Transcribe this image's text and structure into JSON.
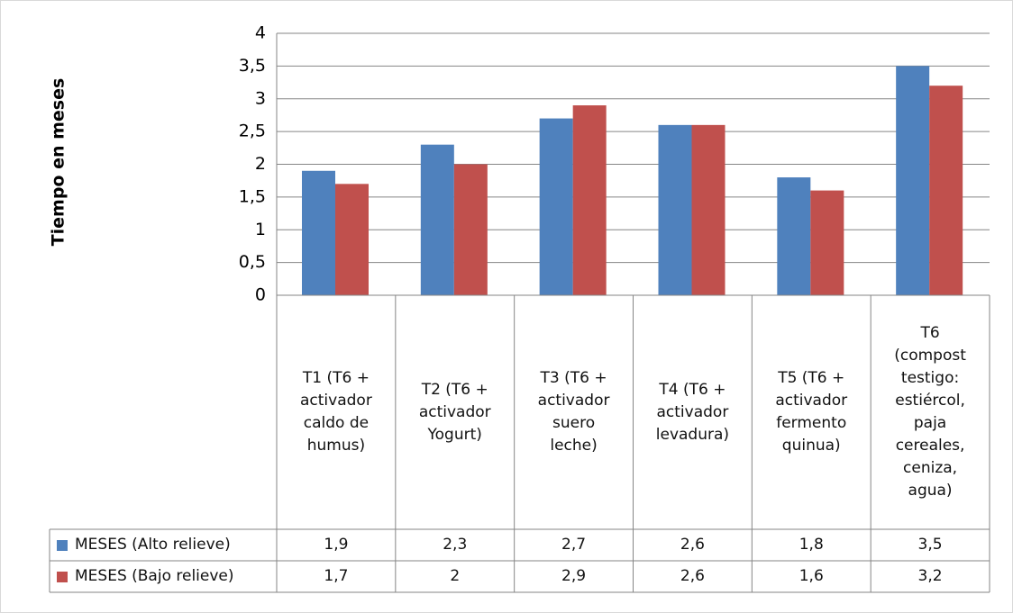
{
  "chart_data": {
    "type": "bar",
    "y_label": "Tiempo en meses",
    "categories": [
      "T1 (T6 + activador caldo de humus)",
      "T2 (T6 + activador Yogurt)",
      "T3 (T6 + activador suero leche)",
      "T4 (T6 + activador levadura)",
      "T5 (T6 + activador fermento quinua)",
      "T6 (compost testigo: estiércol, paja cereales, ceniza, agua)"
    ],
    "series": [
      {
        "name": "MESES (Alto relieve)",
        "color": "#4f81bd",
        "values": [
          1.9,
          2.3,
          2.7,
          2.6,
          1.8,
          3.5
        ],
        "value_labels": [
          "1,9",
          "2,3",
          "2,7",
          "2,6",
          "1,8",
          "3,5"
        ]
      },
      {
        "name": "MESES (Bajo relieve)",
        "color": "#c0504d",
        "values": [
          1.7,
          2,
          2.9,
          2.6,
          1.6,
          3.2
        ],
        "value_labels": [
          "1,7",
          "2",
          "2,9",
          "2,6",
          "1,6",
          "3,2"
        ]
      }
    ],
    "ylim": [
      0,
      4
    ],
    "yticks": [
      0,
      {
        "value": 0.5,
        "label": "0,5"
      },
      1,
      {
        "value": 1.5,
        "label": "1,5"
      },
      2,
      {
        "value": 2.5,
        "label": "2,5"
      },
      3,
      {
        "value": 3.5,
        "label": "3,5"
      },
      4
    ],
    "grid": true
  }
}
